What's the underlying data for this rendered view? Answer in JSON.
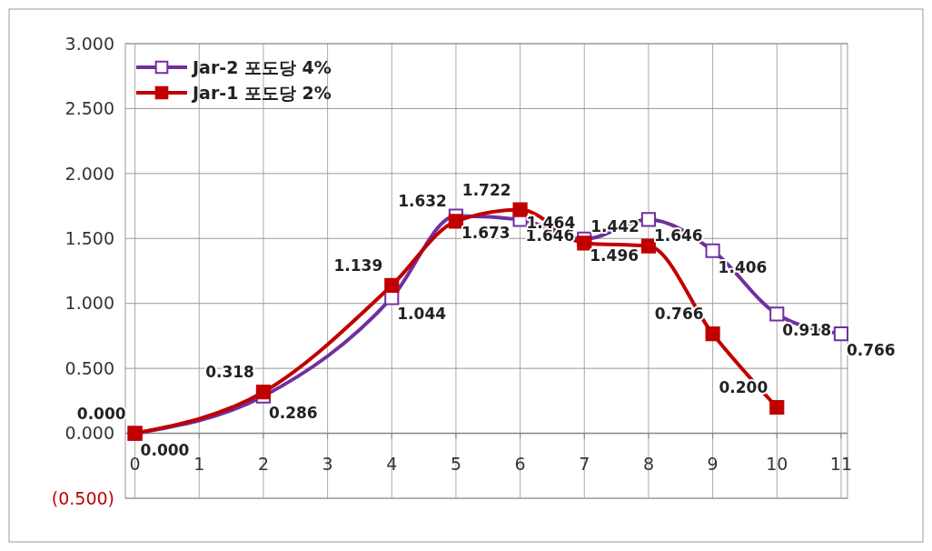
{
  "chart_data": {
    "type": "line",
    "series": [
      {
        "name": "Jar-2 포도당 4%",
        "color": "#7030a0",
        "marker": "square",
        "x": [
          0,
          2,
          4,
          5,
          6,
          7,
          8,
          9,
          10,
          11
        ],
        "values": [
          0,
          0.286,
          1.044,
          1.673,
          1.646,
          1.496,
          1.646,
          1.406,
          0.918,
          0.766
        ],
        "value_labels": [
          "0.000",
          "0.286",
          "1.044",
          "1.673",
          "1.646",
          "1.496",
          "1.646",
          "1.406",
          "0.918",
          "0.766"
        ]
      },
      {
        "name": "Jar-1 포도당 2%",
        "color": "#c00000",
        "marker": "square",
        "x": [
          0,
          2,
          4,
          5,
          6,
          7,
          8,
          9,
          10
        ],
        "values": [
          0,
          0.318,
          1.139,
          1.632,
          1.722,
          1.464,
          1.442,
          0.766,
          0.2
        ],
        "value_labels": [
          "0.000",
          "0.318",
          "1.139",
          "1.632",
          "1.722",
          "1.464",
          "1.442",
          "0.766",
          "0.200"
        ]
      }
    ],
    "xlim": [
      -0.15,
      11.1
    ],
    "xticks": [
      0,
      1,
      2,
      3,
      4,
      5,
      6,
      7,
      8,
      9,
      10,
      11
    ],
    "ylim": [
      -0.5,
      3
    ],
    "yticks": [
      {
        "value": -0.5,
        "label": "(0.500)"
      },
      {
        "value": 0,
        "label": "0.000"
      },
      {
        "value": 0.5,
        "label": "0.500"
      },
      {
        "value": 1,
        "label": "1.000"
      },
      {
        "value": 1.5,
        "label": "1.500"
      },
      {
        "value": 2,
        "label": "2.000"
      },
      {
        "value": 2.5,
        "label": "2.500"
      },
      {
        "value": 3,
        "label": "3.000"
      }
    ],
    "grid": true,
    "legend": "top left"
  }
}
